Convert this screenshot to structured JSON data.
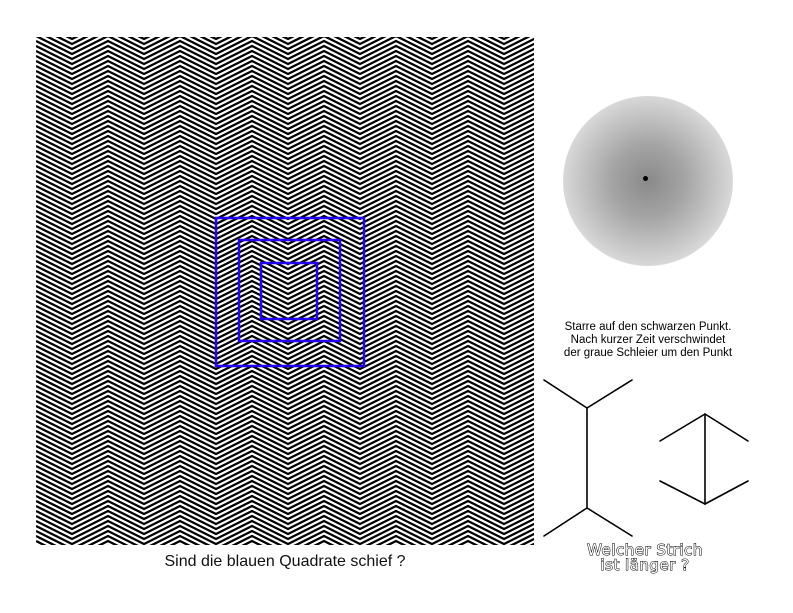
{
  "illusion_square": {
    "caption": "Sind die blauen Quadrate schief ?",
    "square_color": "#2200ee",
    "line_color": "#000000"
  },
  "illusion_haze": {
    "instruction_lines": [
      "Starre auf den schwarzen Punkt.",
      "Nach kurzer Zeit verschwindet",
      "der graue Schleier um den Punkt"
    ]
  },
  "illusion_lines": {
    "caption_lines": [
      "Welcher Strich",
      "ist länger ?"
    ],
    "line_color": "#000000"
  }
}
